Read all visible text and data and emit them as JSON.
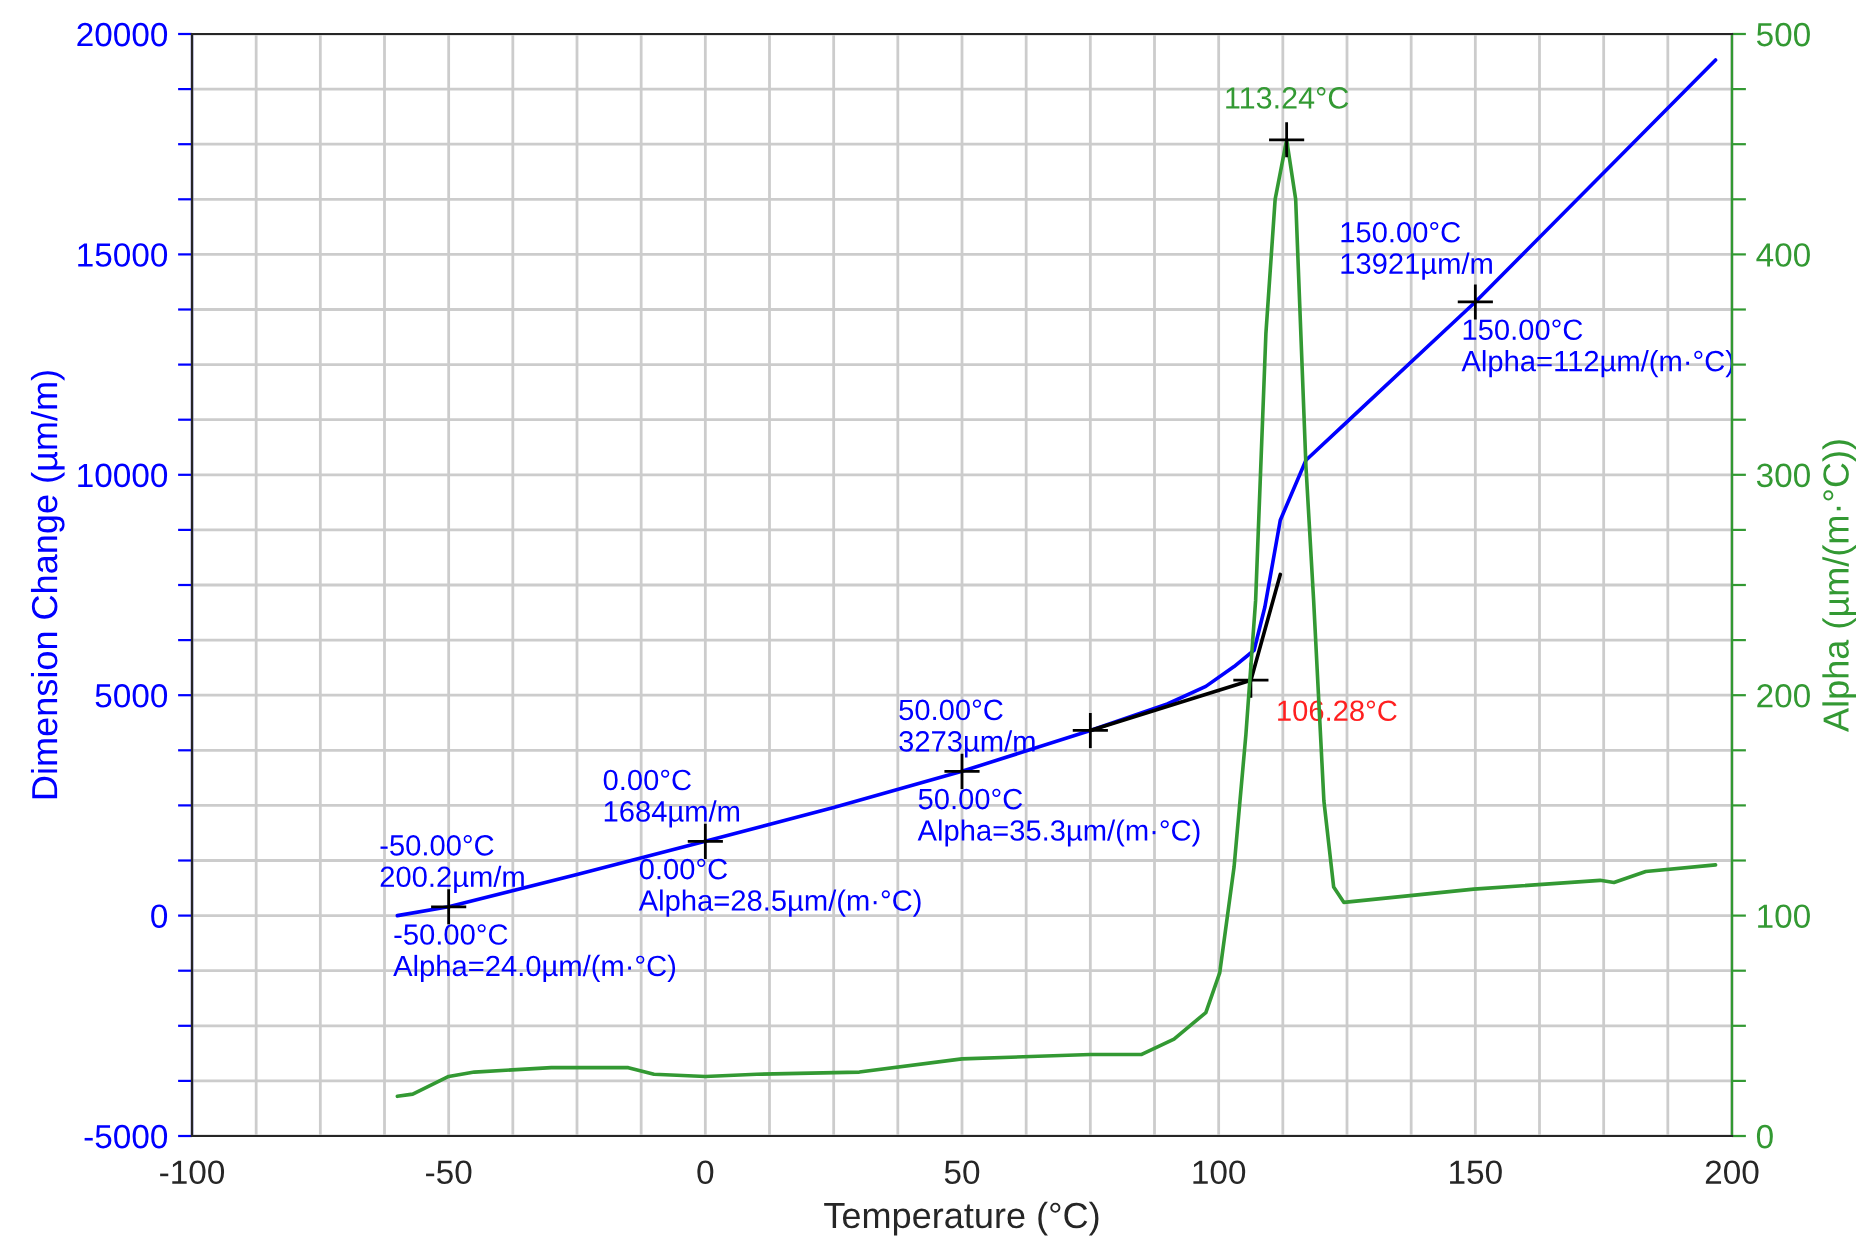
{
  "chart_data": {
    "type": "line",
    "xlabel": "Temperature (°C)",
    "ylabel": "Dimension Change (µm/m)",
    "y2label": "Alpha (µm/(m·°C))",
    "xlim": [
      -100,
      200
    ],
    "ylim": [
      -5000,
      20000
    ],
    "y2lim": [
      0,
      500
    ],
    "xticks": [
      -100,
      {
        "value": -87.5,
        "label": null
      },
      {
        "value": -75,
        "label": null
      },
      {
        "value": -62.5,
        "label": null
      },
      -50,
      {
        "value": -37.5,
        "label": null
      },
      {
        "value": -25,
        "label": null
      },
      {
        "value": -12.5,
        "label": null
      },
      0,
      {
        "value": 12.5,
        "label": null
      },
      {
        "value": 25,
        "label": null
      },
      {
        "value": 37.5,
        "label": null
      },
      50,
      {
        "value": 62.5,
        "label": null
      },
      {
        "value": 75,
        "label": null
      },
      {
        "value": 87.5,
        "label": null
      },
      100,
      {
        "value": 112.5,
        "label": null
      },
      {
        "value": 125,
        "label": null
      },
      {
        "value": 137.5,
        "label": null
      },
      150,
      {
        "value": 162.5,
        "label": null
      },
      {
        "value": 175,
        "label": null
      },
      {
        "value": 187.5,
        "label": null
      },
      200
    ],
    "yticks": [
      -5000,
      {
        "value": -3750,
        "label": null
      },
      {
        "value": -2500,
        "label": null
      },
      {
        "value": -1250,
        "label": null
      },
      0,
      {
        "value": 1250,
        "label": null
      },
      {
        "value": 2500,
        "label": null
      },
      {
        "value": 3750,
        "label": null
      },
      5000,
      {
        "value": 6250,
        "label": null
      },
      {
        "value": 7500,
        "label": null
      },
      {
        "value": 8750,
        "label": null
      },
      10000,
      {
        "value": 11250,
        "label": null
      },
      {
        "value": 12500,
        "label": null
      },
      {
        "value": 13750,
        "label": null
      },
      15000,
      {
        "value": 16250,
        "label": null
      },
      {
        "value": 17500,
        "label": null
      },
      {
        "value": 18750,
        "label": null
      },
      20000
    ],
    "y2ticks": [
      0,
      {
        "value": 25,
        "label": null
      },
      {
        "value": 50,
        "label": null
      },
      {
        "value": 75,
        "label": null
      },
      100,
      {
        "value": 125,
        "label": null
      },
      {
        "value": 150,
        "label": null
      },
      {
        "value": 175,
        "label": null
      },
      200,
      {
        "value": 225,
        "label": null
      },
      {
        "value": 250,
        "label": null
      },
      {
        "value": 275,
        "label": null
      },
      300,
      {
        "value": 325,
        "label": null
      },
      {
        "value": 350,
        "label": null
      },
      {
        "value": 375,
        "label": null
      },
      400,
      {
        "value": 425,
        "label": null
      },
      {
        "value": 450,
        "label": null
      },
      {
        "value": 475,
        "label": null
      },
      500
    ],
    "grid": true,
    "legend": false,
    "series": [
      {
        "color": "#0000ff",
        "x": [
          -60,
          -50,
          -25,
          0,
          25,
          50,
          75,
          90,
          97.5,
          103,
          106.9,
          109,
          112,
          117,
          125,
          150,
          175,
          196.8
        ],
        "values": [
          0,
          200.2,
          930,
          1684,
          2450,
          3273,
          4200,
          4800,
          5200,
          5650,
          6020,
          7000,
          8970,
          10330,
          11200,
          13921,
          16850,
          19410
        ]
      },
      {
        "type": "line",
        "color": "#000000",
        "x": [
          75,
          106.28,
          112
        ],
        "values": [
          4200,
          5340,
          7740
        ]
      },
      {
        "axis": "y2",
        "color": "#339933",
        "x": [
          -60,
          -57,
          -50,
          -45,
          -30,
          -15,
          -10,
          0,
          10,
          30,
          50,
          75,
          85,
          91.3,
          97.5,
          100.2,
          103,
          105.3,
          107.2,
          109.2,
          111,
          113.24,
          115,
          117,
          118.5,
          120.5,
          122.4,
          124.4,
          149.7,
          174.3,
          177,
          183.2,
          196.8
        ],
        "values": [
          18,
          19,
          27,
          29,
          31,
          31,
          28,
          27,
          28,
          29,
          35,
          37,
          37,
          44,
          56,
          74,
          122,
          182,
          243,
          364,
          425,
          452,
          425,
          304,
          243,
          152,
          113,
          106,
          112,
          116,
          115,
          120,
          123
        ]
      },
      {
        "type": "scatter",
        "marker": "cross",
        "color": "#000000",
        "x": [
          -50,
          0,
          50,
          75,
          106.28,
          150
        ],
        "values": [
          200.2,
          1684,
          3273,
          4200,
          5340,
          13921
        ]
      },
      {
        "type": "scatter",
        "marker": "cross",
        "axis": "y2",
        "color": "#000000",
        "x": [
          113.24
        ],
        "values": [
          452
        ]
      }
    ],
    "annotations": [
      {
        "text": "-50.00°C\n200.2µm/m",
        "x": -50,
        "y": 200.2
      },
      {
        "text": "-50.00°C\nAlpha=24.0µm/(m·°C)",
        "x": -50,
        "y": 200.2
      },
      {
        "text": "0.00°C\n1684µm/m",
        "x": 0,
        "y": 1684
      },
      {
        "text": "0.00°C\nAlpha=28.5µm/(m·°C)",
        "x": 0,
        "y": 1684
      },
      {
        "text": "50.00°C\n3273µm/m",
        "x": 50,
        "y": 3273
      },
      {
        "text": "50.00°C\nAlpha=35.3µm/(m·°C)",
        "x": 50,
        "y": 3273
      },
      {
        "text": "150.00°C\n13921µm/m",
        "x": 150,
        "y": 13921
      },
      {
        "text": "150.00°C\nAlpha=112µm/(m·°C)",
        "x": 150,
        "y": 13921
      },
      "113.24°C",
      {
        "text": "106.28°C",
        "x": 106.28,
        "y": 5340
      }
    ]
  }
}
